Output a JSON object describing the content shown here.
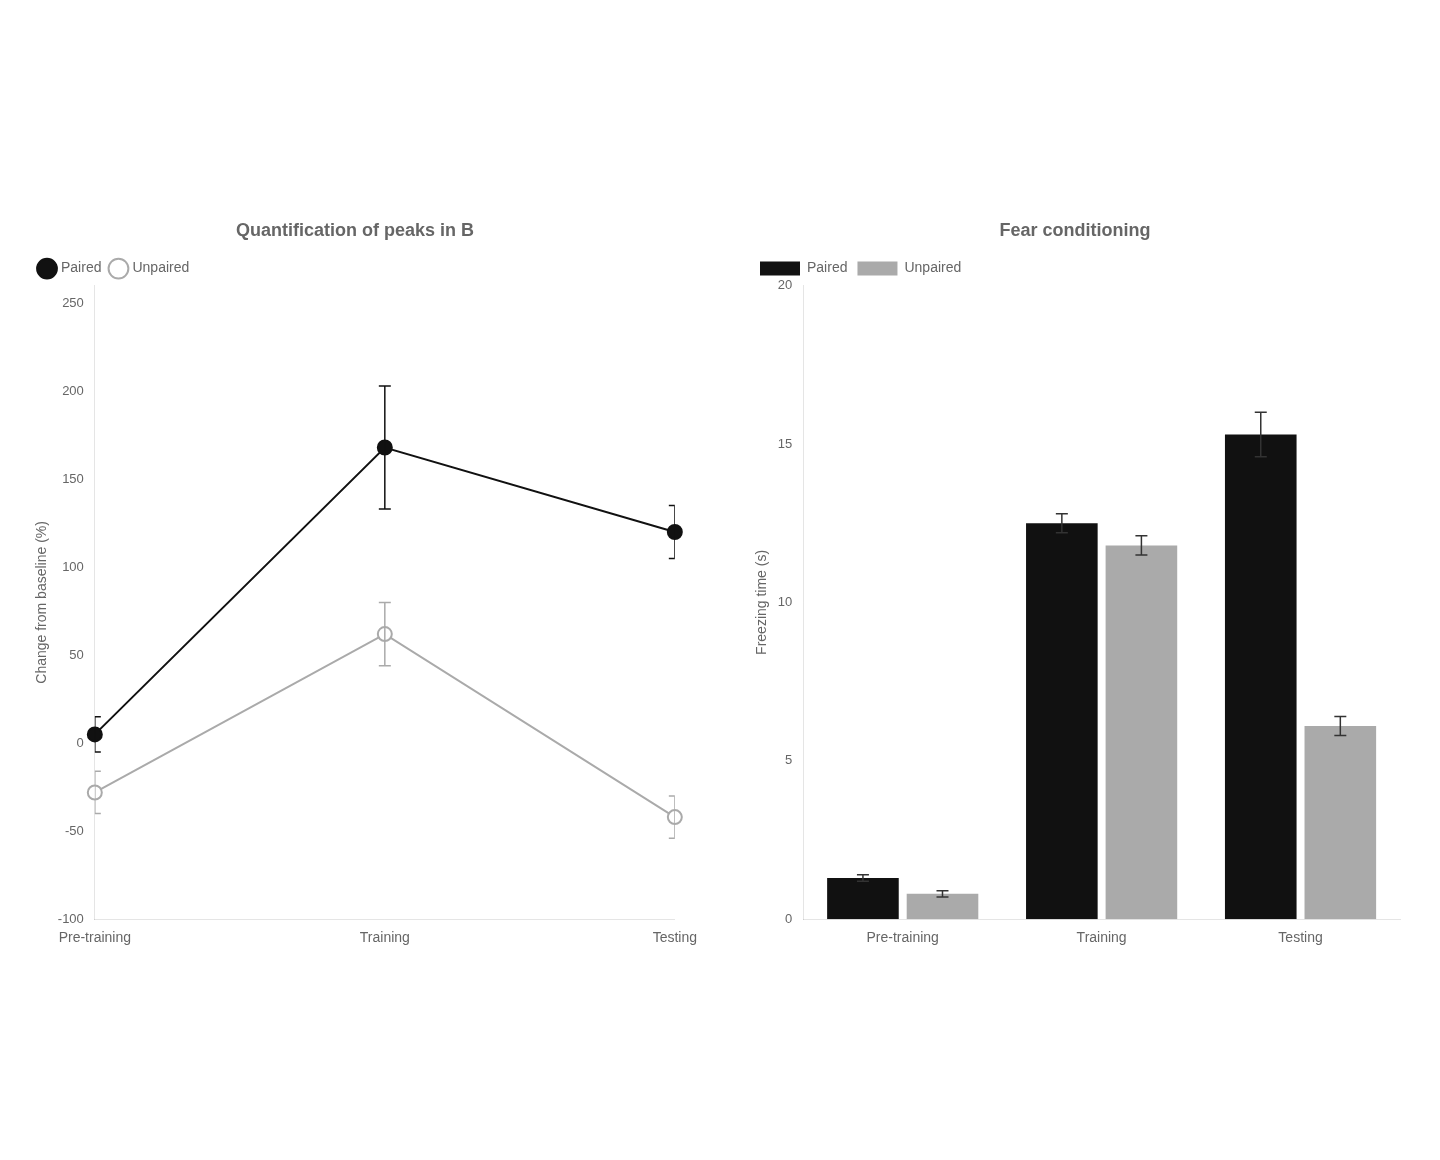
{
  "chart_data": [
    {
      "type": "line",
      "title": "Quantification of peaks in B",
      "ylabel": "Change from baseline (%)",
      "categories": [
        "Pre-training",
        "Training",
        "Testing"
      ],
      "series": [
        {
          "name": "Paired",
          "color": "#111111",
          "marker": "circle",
          "values": [
            5,
            168,
            120
          ],
          "errors": [
            10,
            35,
            15
          ]
        },
        {
          "name": "Unpaired",
          "color": "#aaaaaa",
          "marker": "open_circle",
          "values": [
            -28,
            62,
            -42
          ],
          "errors": [
            12,
            18,
            12
          ]
        }
      ],
      "ylim": [
        -100,
        260
      ],
      "yticks": [
        -100,
        -50,
        0,
        50,
        100,
        150,
        200,
        250
      ],
      "grid": false,
      "legend": "upper left"
    },
    {
      "type": "bar",
      "title": "Fear conditioning",
      "ylabel": "Freezing time (s)",
      "categories": [
        "Pre-training",
        "Training",
        "Testing"
      ],
      "series": [
        {
          "name": "Paired",
          "color": "#111111",
          "values": [
            1.3,
            12.5,
            15.3
          ],
          "errors": [
            0.1,
            0.3,
            0.7
          ]
        },
        {
          "name": "Unpaired",
          "color": "#aaaaaa",
          "values": [
            0.8,
            11.8,
            6.1
          ],
          "errors": [
            0.1,
            0.3,
            0.3
          ]
        }
      ],
      "ylim": [
        0,
        20
      ],
      "yticks": [
        0,
        5,
        10,
        15,
        20
      ],
      "grid": false,
      "legend": "upper left"
    }
  ]
}
